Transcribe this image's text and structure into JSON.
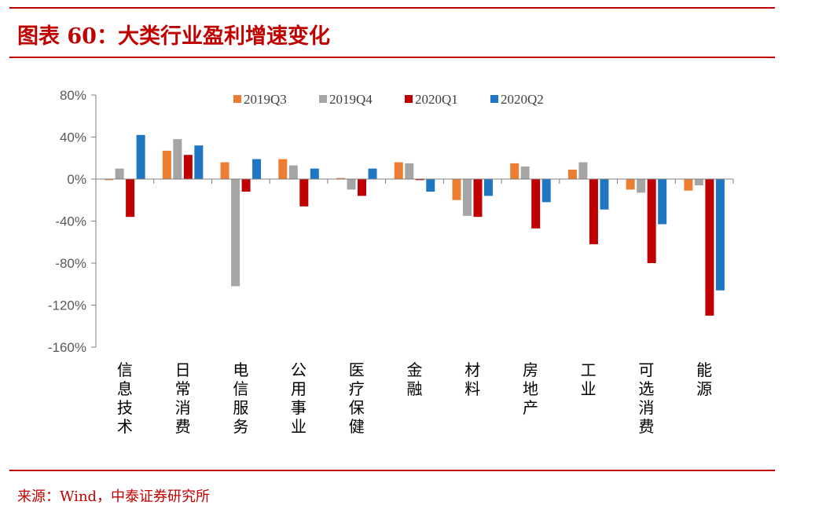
{
  "header": {
    "title": "图表 60：大类行业盈利增速变化"
  },
  "footer": {
    "source": "来源：Wind，中泰证券研究所"
  },
  "chart_data": {
    "type": "bar",
    "title": "大类行业盈利增速变化",
    "xlabel": "",
    "ylabel": "",
    "ylim": [
      -160,
      80
    ],
    "y_ticks": [
      80,
      40,
      0,
      -40,
      -80,
      -120,
      -160
    ],
    "y_tick_labels": [
      "80%",
      "40%",
      "0%",
      "-40%",
      "-80%",
      "-120%",
      "-160%"
    ],
    "grid": false,
    "legend_position": "top",
    "categories": [
      "信息技术",
      "日常消费",
      "电信服务",
      "公用事业",
      "医疗保健",
      "金融",
      "材料",
      "房地产",
      "工业",
      "可选消费",
      "能源"
    ],
    "series": [
      {
        "name": "2019Q3",
        "color": "#ed7d31",
        "values": [
          -1,
          27,
          16,
          19,
          1,
          16,
          -20,
          15,
          9,
          -10,
          -11
        ]
      },
      {
        "name": "2019Q4",
        "color": "#a5a5a5",
        "values": [
          10,
          38,
          -102,
          13,
          -10,
          15,
          -35,
          12,
          16,
          -13,
          -6
        ]
      },
      {
        "name": "2020Q1",
        "color": "#c00000",
        "values": [
          -36,
          23,
          -12,
          -26,
          -16,
          -1,
          -36,
          -47,
          -62,
          -80,
          -130
        ]
      },
      {
        "name": "2020Q2",
        "color": "#1f77c4",
        "values": [
          42,
          32,
          19,
          10,
          10,
          -12,
          -16,
          -22,
          -29,
          -43,
          -106
        ]
      }
    ]
  }
}
